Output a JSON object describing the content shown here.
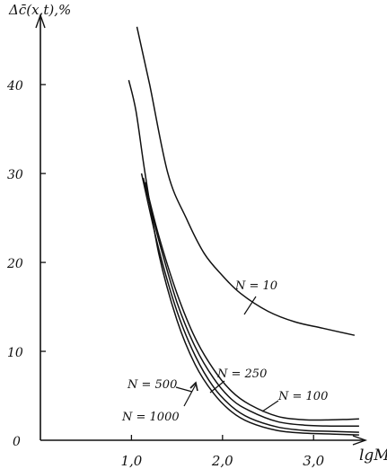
{
  "chart_data": {
    "type": "line",
    "ylabel": "Δc̄(x,t),%",
    "xlabel": "lgM",
    "xlim": [
      0.0,
      3.55
    ],
    "ylim": [
      0,
      48
    ],
    "x_ticks": [
      {
        "value": 1.0,
        "label": "1,0"
      },
      {
        "value": 2.0,
        "label": "2,0"
      },
      {
        "value": 3.0,
        "label": "3,0"
      }
    ],
    "y_ticks": [
      {
        "value": 0,
        "label": "0"
      },
      {
        "value": 10,
        "label": "10"
      },
      {
        "value": 20,
        "label": "20"
      },
      {
        "value": 30,
        "label": "30"
      },
      {
        "value": 40,
        "label": "40"
      }
    ],
    "grid": false,
    "legend": "none",
    "series": [
      {
        "name": "N = 10",
        "points": [
          [
            1.06,
            46.5
          ],
          [
            1.2,
            40
          ],
          [
            1.4,
            30
          ],
          [
            1.6,
            25
          ],
          [
            1.8,
            21
          ],
          [
            2.0,
            18.5
          ],
          [
            2.2,
            16.5
          ],
          [
            2.5,
            14.5
          ],
          [
            2.8,
            13.3
          ],
          [
            3.1,
            12.6
          ],
          [
            3.45,
            11.8
          ]
        ]
      },
      {
        "name": "N = 100",
        "points": [
          [
            1.15,
            29
          ],
          [
            1.3,
            23
          ],
          [
            1.5,
            16.5
          ],
          [
            1.7,
            11.5
          ],
          [
            1.9,
            8.0
          ],
          [
            2.1,
            5.5
          ],
          [
            2.3,
            4.0
          ],
          [
            2.6,
            2.7
          ],
          [
            2.9,
            2.3
          ],
          [
            3.2,
            2.3
          ],
          [
            3.5,
            2.4
          ]
        ]
      },
      {
        "name": "N = 250",
        "points": [
          [
            1.13,
            29.5
          ],
          [
            1.3,
            22.5
          ],
          [
            1.5,
            15.5
          ],
          [
            1.7,
            10.5
          ],
          [
            1.9,
            7.0
          ],
          [
            2.1,
            4.6
          ],
          [
            2.3,
            3.3
          ],
          [
            2.6,
            2.1
          ],
          [
            2.9,
            1.7
          ],
          [
            3.2,
            1.6
          ],
          [
            3.5,
            1.6
          ]
        ]
      },
      {
        "name": "N = 500",
        "points": [
          [
            1.11,
            30
          ],
          [
            1.3,
            21.5
          ],
          [
            1.5,
            14.5
          ],
          [
            1.7,
            9.5
          ],
          [
            1.9,
            6.0
          ],
          [
            2.1,
            3.8
          ],
          [
            2.3,
            2.5
          ],
          [
            2.6,
            1.5
          ],
          [
            2.9,
            1.1
          ],
          [
            3.2,
            1.0
          ],
          [
            3.5,
            0.9
          ]
        ]
      },
      {
        "name": "N = 1000",
        "points": [
          [
            0.97,
            40.5
          ],
          [
            1.05,
            37
          ],
          [
            1.15,
            30
          ],
          [
            1.3,
            21
          ],
          [
            1.5,
            13.5
          ],
          [
            1.7,
            8.5
          ],
          [
            1.9,
            5.3
          ],
          [
            2.1,
            3.2
          ],
          [
            2.3,
            2.0
          ],
          [
            2.6,
            1.1
          ],
          [
            2.9,
            0.8
          ],
          [
            3.2,
            0.7
          ],
          [
            3.5,
            0.6
          ]
        ]
      }
    ],
    "annotations": [
      {
        "text": "N = 10",
        "target_series": "N = 10"
      },
      {
        "text": "N = 100",
        "target_series": "N = 100"
      },
      {
        "text": "N = 250",
        "target_series": "N = 250"
      },
      {
        "text": "N = 500",
        "target_series": "N = 500"
      },
      {
        "text": "N = 1000",
        "target_series": "N = 1000"
      }
    ]
  }
}
